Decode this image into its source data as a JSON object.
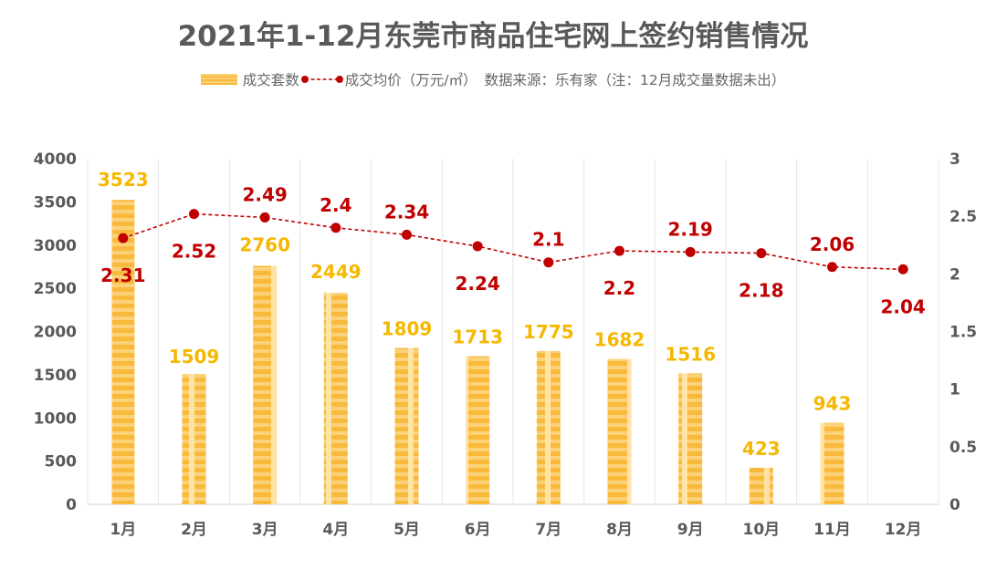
{
  "chart_data": {
    "type": "bar+line",
    "title": "2021年1-12月东莞市商品住宅网上签约销售情况",
    "categories": [
      "1月",
      "2月",
      "3月",
      "4月",
      "5月",
      "6月",
      "7月",
      "8月",
      "9月",
      "10月",
      "11月",
      "12月"
    ],
    "series": [
      {
        "name": "成交套数",
        "type": "bar",
        "axis": "left",
        "color": "#f9b93a",
        "values": [
          3523,
          1509,
          2760,
          2449,
          1809,
          1713,
          1775,
          1682,
          1516,
          423,
          943,
          null
        ]
      },
      {
        "name": "成交均价（万元/㎡）",
        "type": "line",
        "axis": "right",
        "color": "#c00000",
        "line_style": "dashed",
        "values": [
          2.31,
          2.52,
          2.49,
          2.4,
          2.34,
          2.24,
          2.1,
          2.2,
          2.19,
          2.18,
          2.06,
          2.04
        ]
      }
    ],
    "y_left": {
      "ylim": [
        0,
        4000
      ],
      "ticks": [
        0,
        500,
        1000,
        1500,
        2000,
        2500,
        3000,
        3500,
        4000
      ]
    },
    "y_right": {
      "ylim": [
        0,
        3
      ],
      "ticks": [
        "0",
        "0.5",
        "1",
        "1.5",
        "2",
        "2.5",
        "3"
      ]
    },
    "legend": {
      "position": "top",
      "bar_label": "成交套数",
      "line_label": "成交均价（万元/㎡）",
      "note": "数据来源：乐有家（注：12月成交量数据未出）"
    },
    "grid": "vertical"
  }
}
